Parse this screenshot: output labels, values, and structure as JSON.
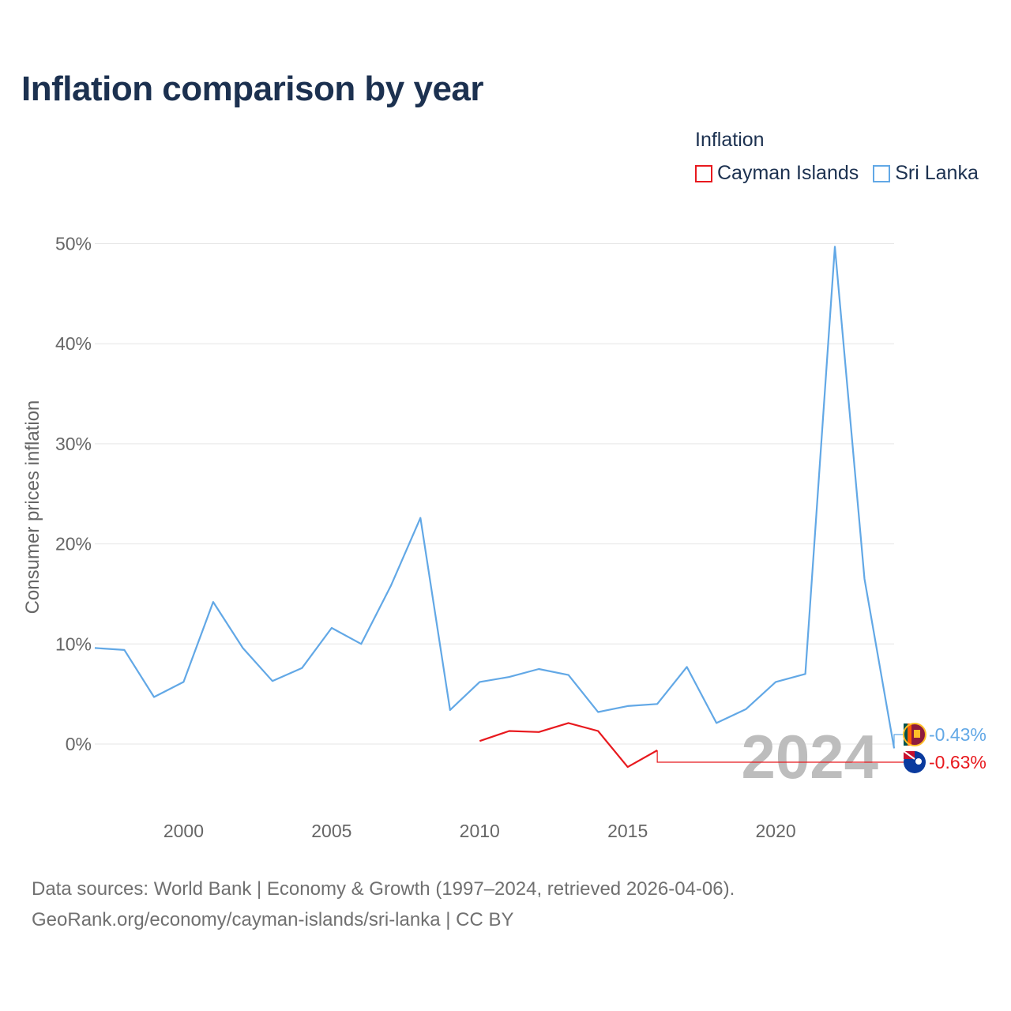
{
  "title": "Inflation comparison by year",
  "legend": {
    "title": "Inflation",
    "items": [
      {
        "label": "Cayman Islands",
        "color": "#e8191e"
      },
      {
        "label": "Sri Lanka",
        "color": "#62a8e6"
      }
    ]
  },
  "footer": {
    "line1": "Data sources: World Bank | Economy & Growth (1997–2024, retrieved 2026-04-06).",
    "line2": "GeoRank.org/economy/cayman-islands/sri-lanka | CC BY"
  },
  "chart_data": {
    "type": "line",
    "title": "Inflation comparison by year",
    "ylabel": "Consumer prices inflation",
    "xlabel": "",
    "xlim": [
      1997,
      2024
    ],
    "ylim": [
      -8,
      52
    ],
    "yticks": [
      0,
      10,
      20,
      30,
      40,
      50
    ],
    "ytick_labels": [
      "0%",
      "10%",
      "20%",
      "30%",
      "40%",
      "50%"
    ],
    "xticks": [
      2000,
      2005,
      2010,
      2015,
      2020
    ],
    "xtick_labels": [
      "2000",
      "2005",
      "2010",
      "2015",
      "2020"
    ],
    "year_watermark": "2024",
    "series": [
      {
        "name": "Sri Lanka",
        "color": "#62a8e6",
        "end_label": "-0.43%",
        "x": [
          1997,
          1998,
          1999,
          2000,
          2001,
          2002,
          2003,
          2004,
          2005,
          2006,
          2007,
          2008,
          2009,
          2010,
          2011,
          2012,
          2013,
          2014,
          2015,
          2016,
          2017,
          2018,
          2019,
          2020,
          2021,
          2022,
          2023,
          2024
        ],
        "values": [
          9.6,
          9.4,
          4.7,
          6.2,
          14.2,
          9.6,
          6.3,
          7.6,
          11.6,
          10.0,
          15.8,
          22.6,
          3.4,
          6.2,
          6.7,
          7.5,
          6.9,
          3.2,
          3.8,
          4.0,
          7.7,
          2.1,
          3.5,
          6.2,
          7.0,
          49.7,
          16.5,
          -0.43
        ]
      },
      {
        "name": "Cayman Islands",
        "color": "#e8191e",
        "end_label": "-0.63%",
        "x": [
          2010,
          2011,
          2012,
          2013,
          2014,
          2015,
          2016
        ],
        "values": [
          0.3,
          1.3,
          1.2,
          2.1,
          1.3,
          -2.3,
          -0.63
        ]
      }
    ]
  }
}
